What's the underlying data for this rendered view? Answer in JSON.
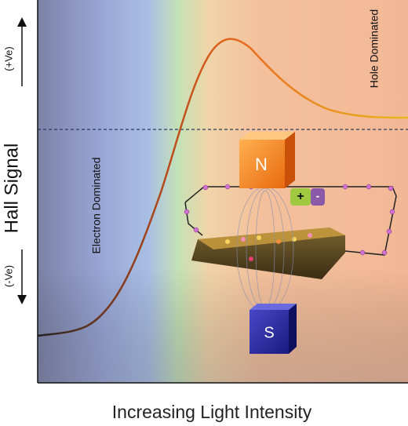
{
  "axis": {
    "y_label": "Hall Signal",
    "positive": "(+Ve)",
    "negative": "(-Ve)",
    "x_label": "Increasing Light Intensity"
  },
  "regions": {
    "electron": "Electron Dominated",
    "hole": "Hole Dominated"
  },
  "magnets": {
    "north": "N",
    "south": "S"
  },
  "battery": {
    "plus": "+",
    "minus": "-"
  }
}
